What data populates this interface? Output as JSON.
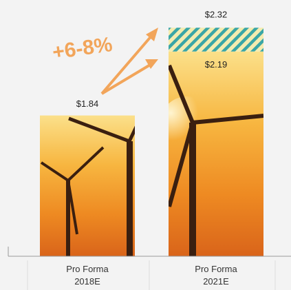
{
  "chart_data": {
    "type": "bar",
    "categories": [
      "Pro Forma\n2018E",
      "Pro Forma\n2021E"
    ],
    "values": [
      1.84,
      2.19
    ],
    "value_labels": [
      "$1.84",
      "$2.19"
    ],
    "range_high": [
      null,
      2.32
    ],
    "range_high_labels": [
      null,
      "$2.32"
    ],
    "annotation": "+6-8%",
    "ylim": [
      1.07,
      2.4
    ]
  }
}
